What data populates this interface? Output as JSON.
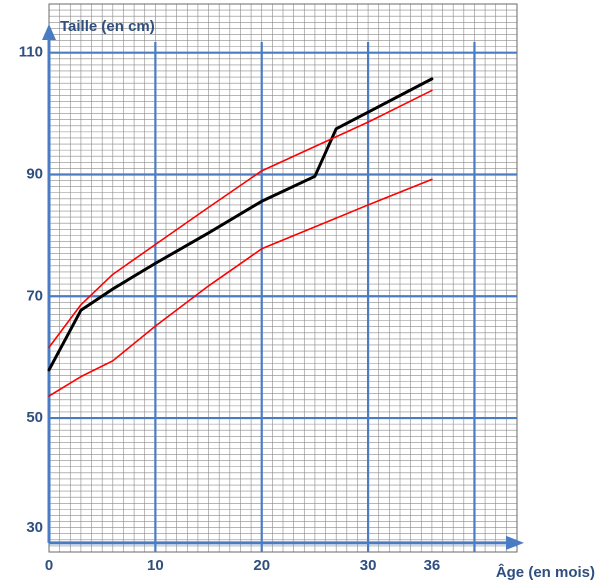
{
  "chart_data": {
    "type": "line",
    "title": "",
    "xlabel": "Âge (en mois)",
    "ylabel": "Taille (en cm)",
    "xlim": [
      0,
      44
    ],
    "ylim": [
      28,
      118
    ],
    "x_ticks": [
      {
        "value": 0,
        "label": "0"
      },
      {
        "value": 10,
        "label": "10"
      },
      {
        "value": 20,
        "label": "20"
      },
      {
        "value": 30,
        "label": "30"
      },
      {
        "value": 36,
        "label": "36"
      }
    ],
    "y_ticks": [
      {
        "value": 30,
        "label": "30"
      },
      {
        "value": 50,
        "label": "50"
      },
      {
        "value": 70,
        "label": "70"
      },
      {
        "value": 90,
        "label": "90"
      },
      {
        "value": 110,
        "label": "110"
      }
    ],
    "grid": true,
    "series": [
      {
        "color": "#000000",
        "points": [
          [
            0,
            57.9
          ],
          [
            3,
            67.7
          ],
          [
            6,
            71.2
          ],
          [
            10,
            75.4
          ],
          [
            15,
            80.4
          ],
          [
            20,
            85.6
          ],
          [
            25,
            89.7
          ],
          [
            27,
            97.5
          ],
          [
            36,
            105.7
          ]
        ]
      },
      {
        "color": "#ff0000",
        "points": [
          [
            0,
            61.6
          ],
          [
            3,
            68.6
          ],
          [
            6,
            73.6
          ],
          [
            10,
            78.5
          ],
          [
            15,
            84.6
          ],
          [
            20,
            90.6
          ],
          [
            25,
            94.6
          ],
          [
            30,
            98.6
          ],
          [
            36,
            103.8
          ]
        ]
      },
      {
        "color": "#ff0000",
        "points": [
          [
            0,
            53.6
          ],
          [
            3,
            56.8
          ],
          [
            6,
            59.4
          ],
          [
            10,
            65.1
          ],
          [
            15,
            71.7
          ],
          [
            20,
            77.8
          ],
          [
            25,
            81.4
          ],
          [
            30,
            85
          ],
          [
            36,
            89.2
          ]
        ]
      }
    ]
  }
}
